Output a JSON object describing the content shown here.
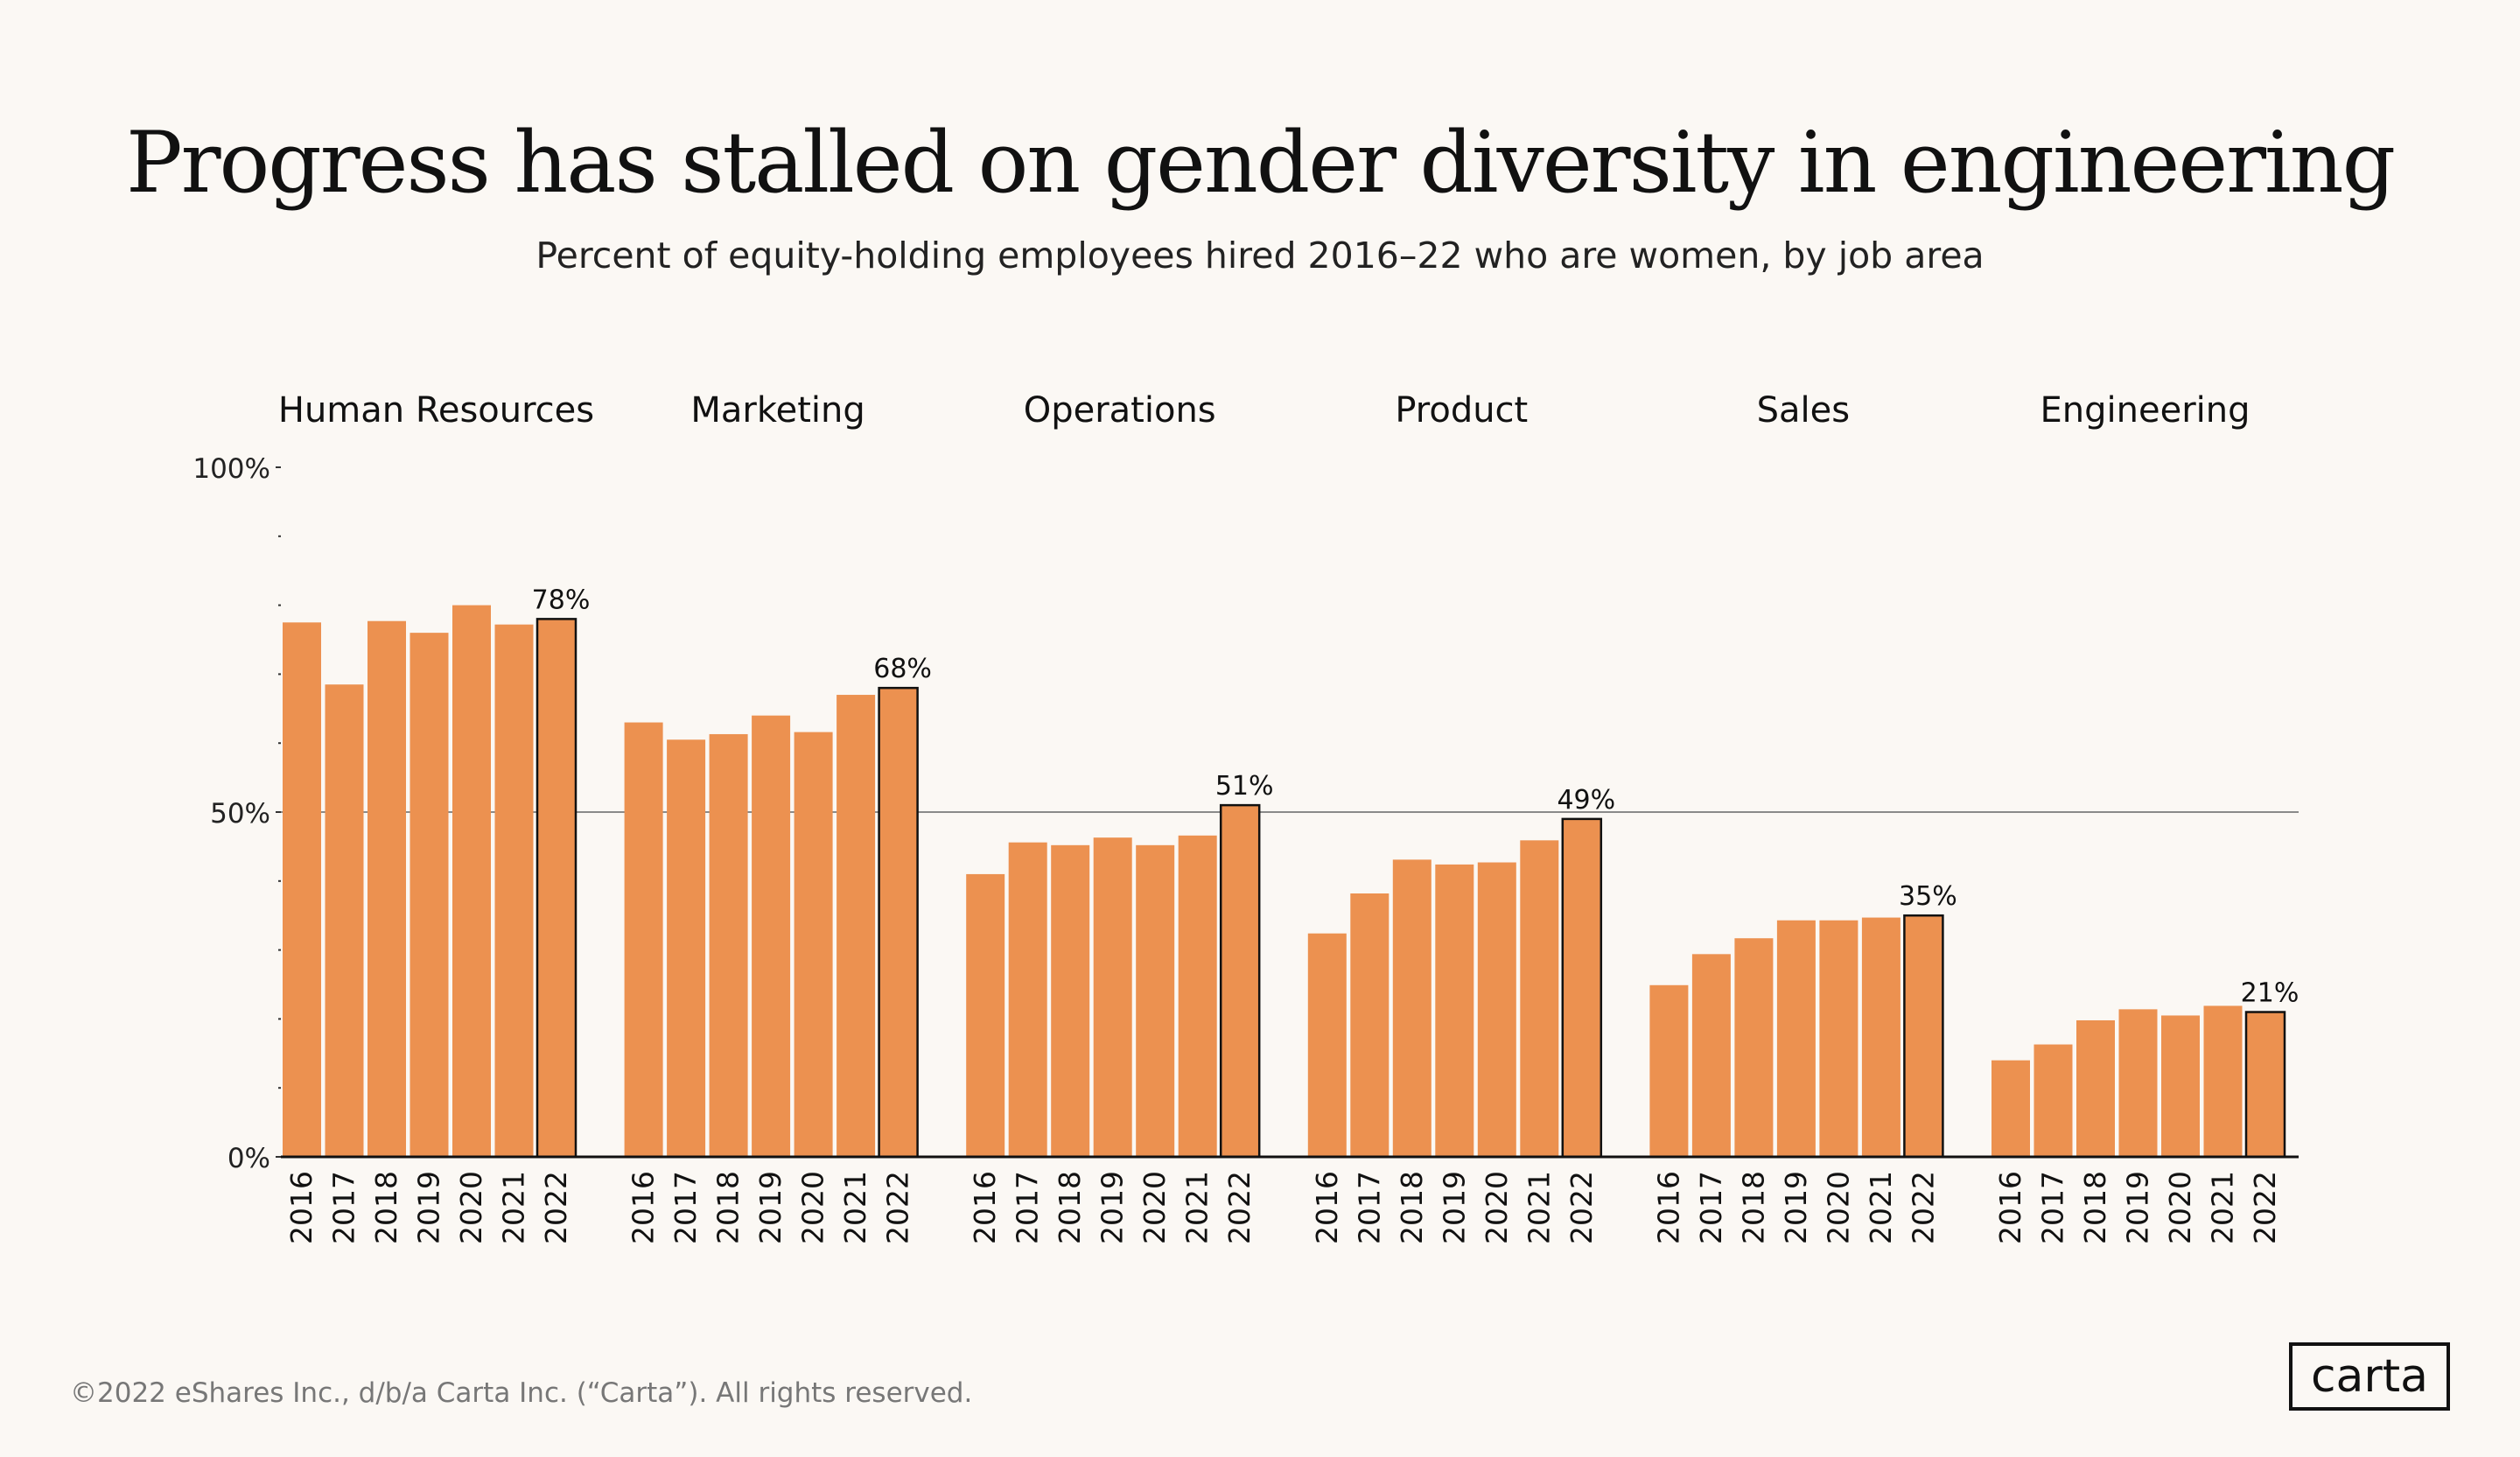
{
  "chart_data": {
    "type": "bar",
    "title": "Progress has stalled on gender diversity in engineering",
    "subtitle": "Percent of equity-holding employees hired 2016–22 who are women, by job area",
    "xlabel": "",
    "ylabel": "",
    "ylim": [
      0,
      100
    ],
    "yticks": [
      "0%",
      "50%",
      "100%"
    ],
    "reference_line": 50,
    "categories": [
      "2016",
      "2017",
      "2018",
      "2019",
      "2020",
      "2021",
      "2022"
    ],
    "bar_color": "#ec9150",
    "groups": [
      {
        "name": "Human Resources",
        "values": [
          77.5,
          68.5,
          77.7,
          76,
          80,
          77.2,
          78
        ],
        "label": "78%"
      },
      {
        "name": "Marketing",
        "values": [
          63,
          60.5,
          61.3,
          64,
          61.6,
          67,
          68
        ],
        "label": "68%"
      },
      {
        "name": "Operations",
        "values": [
          41,
          45.6,
          45.2,
          46.3,
          45.2,
          46.6,
          51
        ],
        "label": "51%"
      },
      {
        "name": "Product",
        "values": [
          32.4,
          38.2,
          43.1,
          42.4,
          42.7,
          45.9,
          49
        ],
        "label": "49%"
      },
      {
        "name": "Sales",
        "values": [
          24.9,
          29.4,
          31.7,
          34.3,
          34.3,
          34.7,
          35
        ],
        "label": "35%"
      },
      {
        "name": "Engineering",
        "values": [
          14,
          16.3,
          19.8,
          21.4,
          20.5,
          21.9,
          21
        ],
        "label": "21%"
      }
    ]
  },
  "footer": "©2022 eShares Inc., d/b/a Carta Inc. (“Carta”). All rights reserved.",
  "logo": "carta"
}
